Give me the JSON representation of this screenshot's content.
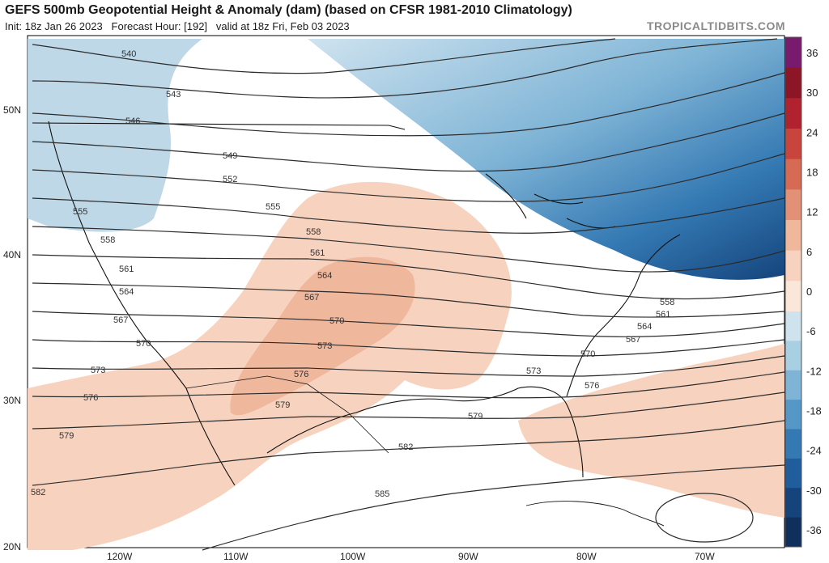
{
  "header": {
    "title": "GEFS 500mb Geopotential Height & Anomaly (dam) (based on CFSR 1981-2010 Climatology)",
    "init": "Init: 18z Jan 26 2023",
    "forecast_hour": "Forecast Hour: [192]",
    "valid": "valid at 18z Fri, Feb 03 2023",
    "brand": "TROPICALTIDBITS.COM"
  },
  "map": {
    "lat_labels": [
      "50N",
      "40N",
      "30N",
      "20N"
    ],
    "lon_labels": [
      "120W",
      "110W",
      "100W",
      "90W",
      "80W",
      "70W"
    ],
    "contour_labels": [
      "540",
      "543",
      "546",
      "549",
      "552",
      "555",
      "558",
      "561",
      "564",
      "567",
      "570",
      "573",
      "576",
      "579",
      "582",
      "585"
    ]
  },
  "colorbar": {
    "ticks": [
      "36",
      "30",
      "24",
      "18",
      "12",
      "6",
      "0",
      "-6",
      "-12",
      "-18",
      "-24",
      "-30",
      "-36"
    ],
    "positive_colors": [
      "#7a1a6e",
      "#8c1526",
      "#b0232e",
      "#c7453c",
      "#d66a55",
      "#e39176",
      "#efb79c",
      "#f7d3bf",
      "#fbe6da"
    ],
    "negative_colors": [
      "#cfe3ef",
      "#a9cfe3",
      "#7fb4d6",
      "#5597c6",
      "#3479b3",
      "#1f5d9c",
      "#15447c",
      "#0f2f5c"
    ]
  }
}
